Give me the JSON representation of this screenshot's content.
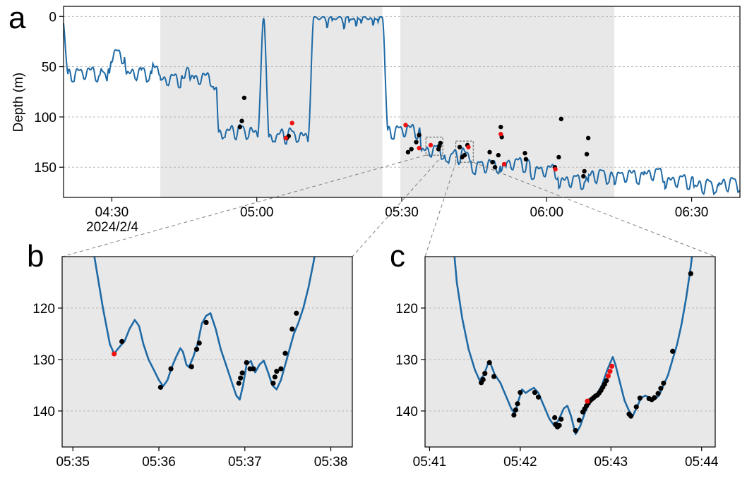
{
  "colors": {
    "line": "#1f6aa5",
    "dot_black": "#000000",
    "dot_red": "#ee1111",
    "shade": "#e8e8e8",
    "grid": "#b0b0b0",
    "connector": "#808080"
  },
  "chart_data": [
    {
      "panel": "a",
      "type": "line",
      "ylabel": "Depth (m)",
      "yaxis": "inverted",
      "ylim": [
        180,
        -10
      ],
      "xlim_min": [
        260,
        400
      ],
      "y_ticks": [
        0,
        50,
        100,
        150
      ],
      "x_ticks": [
        {
          "v": 270,
          "label": "04:30"
        },
        {
          "v": 300,
          "label": "05:00"
        },
        {
          "v": 330,
          "label": "05:30"
        },
        {
          "v": 360,
          "label": "06:00"
        },
        {
          "v": 390,
          "label": "06:30"
        }
      ],
      "date_label": "2024/2/4",
      "grid": "horizontal dashed",
      "shaded_intervals_min": [
        [
          280,
          326
        ],
        [
          329.7,
          374
        ]
      ],
      "zoom_boxes_min": [
        [
          335.0,
          338.5,
          120,
          138
        ],
        [
          341.2,
          344.8,
          124,
          145
        ]
      ],
      "dives": [
        [
          265.0,
          8,
          58
        ],
        [
          268.0,
          3,
          53
        ],
        [
          270.5,
          4,
          40
        ],
        [
          275.6,
          5,
          58
        ],
        [
          278.2,
          4,
          54
        ],
        [
          282.2,
          4,
          64
        ],
        [
          285.5,
          3,
          57
        ],
        [
          288.8,
          5,
          63
        ],
        [
          292.0,
          3,
          67
        ],
        [
          296.2,
          8,
          116
        ],
        [
          306.6,
          8,
          120
        ],
        [
          315.0,
          1,
          4
        ],
        [
          318.5,
          1,
          5
        ],
        [
          321.0,
          1,
          5
        ],
        [
          324.5,
          1,
          4
        ],
        [
          331.2,
          8,
          115
        ],
        [
          336.6,
          5,
          135
        ],
        [
          342.5,
          7,
          140
        ],
        [
          348.0,
          7,
          150
        ],
        [
          353.5,
          6,
          148
        ],
        [
          360.2,
          7,
          155
        ],
        [
          365.5,
          6,
          165
        ],
        [
          370.8,
          6,
          160
        ],
        [
          377.0,
          6,
          160
        ],
        [
          382.5,
          5,
          158
        ],
        [
          387.5,
          6,
          165
        ],
        [
          393.0,
          5,
          170
        ],
        [
          398.0,
          5,
          168
        ]
      ],
      "points_black": [
        [
          296.5,
          110
        ],
        [
          296.9,
          104
        ],
        [
          297.4,
          81
        ],
        [
          306.2,
          121
        ],
        [
          306.6,
          119
        ],
        [
          331.3,
          135
        ],
        [
          332.0,
          132
        ],
        [
          333.0,
          125
        ],
        [
          333.6,
          118
        ],
        [
          337.6,
          132
        ],
        [
          337.8,
          129
        ],
        [
          338.0,
          126
        ],
        [
          342.0,
          130
        ],
        [
          342.5,
          140
        ],
        [
          343.0,
          138
        ],
        [
          343.6,
          128
        ],
        [
          348.2,
          135
        ],
        [
          348.8,
          145
        ],
        [
          349.3,
          150
        ],
        [
          350.0,
          138
        ],
        [
          350.5,
          110
        ],
        [
          350.7,
          120
        ],
        [
          355.5,
          136
        ],
        [
          355.7,
          142
        ],
        [
          361.7,
          150
        ],
        [
          362.5,
          140
        ],
        [
          363.0,
          102
        ],
        [
          367.6,
          159
        ],
        [
          367.8,
          154
        ],
        [
          368.3,
          137
        ],
        [
          368.6,
          121
        ]
      ],
      "points_red": [
        [
          306.0,
          121
        ],
        [
          307.3,
          106
        ],
        [
          330.8,
          108
        ],
        [
          333.6,
          131
        ],
        [
          336.0,
          128
        ],
        [
          343.8,
          130
        ],
        [
          351.2,
          147
        ],
        [
          361.8,
          152
        ],
        [
          350.5,
          117
        ]
      ]
    },
    {
      "panel": "b",
      "type": "line",
      "ylim": [
        147,
        110
      ],
      "xlim_min": [
        334.875,
        338.25
      ],
      "y_ticks": [
        120,
        130,
        140
      ],
      "x_ticks": [
        {
          "v": 335,
          "label": "05:35"
        },
        {
          "v": 336,
          "label": "05:36"
        },
        {
          "v": 337,
          "label": "05:37"
        },
        {
          "v": 338,
          "label": "05:38"
        }
      ],
      "grid": "horizontal dashed",
      "line": [
        [
          335.2,
          105
        ],
        [
          335.27,
          112
        ],
        [
          335.35,
          120
        ],
        [
          335.43,
          127
        ],
        [
          335.48,
          128.9
        ],
        [
          335.52,
          128
        ],
        [
          335.56,
          127.2
        ],
        [
          335.6,
          126.5
        ],
        [
          335.66,
          124
        ],
        [
          335.72,
          122.3
        ],
        [
          335.77,
          123.5
        ],
        [
          335.82,
          127
        ],
        [
          335.88,
          130
        ],
        [
          335.95,
          132.3
        ],
        [
          336.0,
          134
        ],
        [
          336.05,
          135.2
        ],
        [
          336.1,
          134
        ],
        [
          336.15,
          131.5
        ],
        [
          336.2,
          129.5
        ],
        [
          336.25,
          127.8
        ],
        [
          336.28,
          128.5
        ],
        [
          336.32,
          131
        ],
        [
          336.35,
          131.5
        ],
        [
          336.4,
          129.5
        ],
        [
          336.45,
          127
        ],
        [
          336.5,
          123
        ],
        [
          336.55,
          121.5
        ],
        [
          336.6,
          121
        ],
        [
          336.66,
          124
        ],
        [
          336.72,
          128
        ],
        [
          336.78,
          131
        ],
        [
          336.84,
          134
        ],
        [
          336.9,
          137
        ],
        [
          336.94,
          137.8
        ],
        [
          336.98,
          135
        ],
        [
          337.02,
          131
        ],
        [
          337.07,
          130.3
        ],
        [
          337.12,
          132.5
        ],
        [
          337.17,
          131
        ],
        [
          337.22,
          130.2
        ],
        [
          337.27,
          132.5
        ],
        [
          337.32,
          135
        ],
        [
          337.37,
          135.8
        ],
        [
          337.42,
          134
        ],
        [
          337.47,
          131
        ],
        [
          337.52,
          128
        ],
        [
          337.57,
          125
        ],
        [
          337.62,
          123
        ],
        [
          337.68,
          120
        ],
        [
          337.74,
          116
        ],
        [
          337.8,
          111
        ],
        [
          337.86,
          105
        ]
      ],
      "points_black": [
        [
          335.57,
          126.5
        ],
        [
          336.02,
          135.4
        ],
        [
          336.14,
          131.8
        ],
        [
          336.38,
          131.4
        ],
        [
          336.44,
          128.0
        ],
        [
          336.47,
          126.8
        ],
        [
          336.55,
          122.8
        ],
        [
          336.93,
          134.6
        ],
        [
          336.95,
          133.6
        ],
        [
          336.97,
          132.6
        ],
        [
          337.02,
          130.6
        ],
        [
          337.06,
          131.8
        ],
        [
          337.1,
          131.8
        ],
        [
          337.33,
          134.6
        ],
        [
          337.35,
          133.4
        ],
        [
          337.37,
          132.3
        ],
        [
          337.42,
          131.8
        ],
        [
          337.47,
          128.8
        ],
        [
          337.55,
          124.1
        ],
        [
          337.6,
          121.0
        ]
      ],
      "points_red": [
        [
          335.48,
          128.9
        ]
      ]
    },
    {
      "panel": "c",
      "type": "line",
      "ylim": [
        147,
        110
      ],
      "xlim_min": [
        340.95,
        344.15
      ],
      "y_ticks": [
        120,
        130,
        140
      ],
      "x_ticks": [
        {
          "v": 341,
          "label": "05:41"
        },
        {
          "v": 342,
          "label": "05:42"
        },
        {
          "v": 343,
          "label": "05:43"
        },
        {
          "v": 344,
          "label": "05:44"
        }
      ],
      "grid": "horizontal dashed",
      "line": [
        [
          341.25,
          105
        ],
        [
          341.3,
          115
        ],
        [
          341.36,
          122
        ],
        [
          341.43,
          128
        ],
        [
          341.5,
          132
        ],
        [
          341.55,
          134
        ],
        [
          341.6,
          133
        ],
        [
          341.64,
          131
        ],
        [
          341.67,
          130.7
        ],
        [
          341.72,
          133
        ],
        [
          341.78,
          134.5
        ],
        [
          341.84,
          137
        ],
        [
          341.9,
          139.5
        ],
        [
          341.94,
          140.5
        ],
        [
          341.98,
          138
        ],
        [
          342.02,
          135.8
        ],
        [
          342.06,
          136.5
        ],
        [
          342.1,
          136
        ],
        [
          342.15,
          135.5
        ],
        [
          342.2,
          136.5
        ],
        [
          342.26,
          139
        ],
        [
          342.32,
          141.5
        ],
        [
          342.38,
          143
        ],
        [
          342.43,
          141.5
        ],
        [
          342.48,
          139.5
        ],
        [
          342.52,
          139
        ],
        [
          342.56,
          141
        ],
        [
          342.61,
          144.5
        ],
        [
          342.66,
          143
        ],
        [
          342.72,
          140
        ],
        [
          342.78,
          138
        ],
        [
          342.84,
          137
        ],
        [
          342.9,
          135
        ],
        [
          342.96,
          132
        ],
        [
          343.02,
          129.5
        ],
        [
          343.05,
          131
        ],
        [
          343.1,
          134.5
        ],
        [
          343.15,
          138
        ],
        [
          343.2,
          140
        ],
        [
          343.24,
          141
        ],
        [
          343.28,
          139.5
        ],
        [
          343.33,
          137.5
        ],
        [
          343.38,
          137
        ],
        [
          343.43,
          137.5
        ],
        [
          343.48,
          137.8
        ],
        [
          343.53,
          137
        ],
        [
          343.58,
          135
        ],
        [
          343.63,
          133
        ],
        [
          343.68,
          130
        ],
        [
          343.73,
          127
        ],
        [
          343.78,
          123
        ],
        [
          343.83,
          118
        ],
        [
          343.88,
          112
        ],
        [
          343.92,
          106
        ]
      ],
      "points_black": [
        [
          341.57,
          134.5
        ],
        [
          341.59,
          133.9
        ],
        [
          341.61,
          132.7
        ],
        [
          341.66,
          130.6
        ],
        [
          341.71,
          133.3
        ],
        [
          341.93,
          140.8
        ],
        [
          341.95,
          139.8
        ],
        [
          341.97,
          138.6
        ],
        [
          342.0,
          136.4
        ],
        [
          342.16,
          136.4
        ],
        [
          342.2,
          137.3
        ],
        [
          342.38,
          141.3
        ],
        [
          342.39,
          142.6
        ],
        [
          342.41,
          143.1
        ],
        [
          342.43,
          142.8
        ],
        [
          342.45,
          141.6
        ],
        [
          342.61,
          143.8
        ],
        [
          342.65,
          141.8
        ],
        [
          342.69,
          140.2
        ],
        [
          342.71,
          139.6
        ],
        [
          342.73,
          139.0
        ],
        [
          342.75,
          138.5
        ],
        [
          342.77,
          138.0
        ],
        [
          342.79,
          137.7
        ],
        [
          342.81,
          137.4
        ],
        [
          342.83,
          137.1
        ],
        [
          342.85,
          136.9
        ],
        [
          342.87,
          136.5
        ],
        [
          342.89,
          136.0
        ],
        [
          342.91,
          135.4
        ],
        [
          342.93,
          134.8
        ],
        [
          342.95,
          134.1
        ],
        [
          343.2,
          140.6
        ],
        [
          343.22,
          141.0
        ],
        [
          343.28,
          139.2
        ],
        [
          343.32,
          137.5
        ],
        [
          343.42,
          137.6
        ],
        [
          343.45,
          137.8
        ],
        [
          343.48,
          137.4
        ],
        [
          343.52,
          136.6
        ],
        [
          343.55,
          135.6
        ],
        [
          343.58,
          134.6
        ],
        [
          343.68,
          128.4
        ],
        [
          343.88,
          113.3
        ]
      ],
      "points_red": [
        [
          342.74,
          138.1
        ],
        [
          342.97,
          133.2
        ],
        [
          342.99,
          132.3
        ],
        [
          343.01,
          131.3
        ]
      ]
    }
  ],
  "panel_labels": {
    "a": "a",
    "b": "b",
    "c": "c"
  }
}
